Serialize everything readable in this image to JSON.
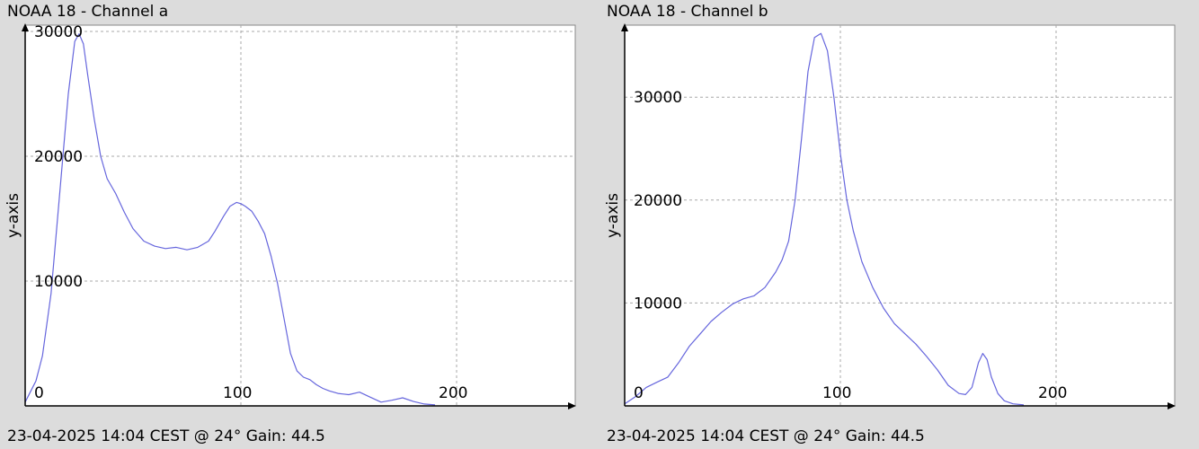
{
  "colors": {
    "background": "#dcdcdc",
    "plot_bg": "#ffffff",
    "line": "#6666dd",
    "grid": "#a8a8a8",
    "axis": "#000000"
  },
  "panels": [
    {
      "title": "NOAA 18 - Channel a",
      "footer": "23-04-2025 14:04 CEST @ 24° Gain: 44.5"
    },
    {
      "title": "NOAA 18 - Channel b",
      "footer": "23-04-2025 14:04 CEST @ 24° Gain: 44.5"
    }
  ],
  "chart_data": [
    {
      "type": "line",
      "title": "NOAA 18 - Channel a",
      "xlabel": "",
      "ylabel": "y-axis",
      "xlim": [
        0,
        255
      ],
      "ylim": [
        0,
        30500
      ],
      "xticks": [
        0,
        100,
        200
      ],
      "yticks": [
        10000,
        20000,
        30000
      ],
      "grid": true,
      "series": [
        {
          "x": [
            0,
            5,
            8,
            12,
            16,
            20,
            23,
            25,
            27,
            29,
            32,
            35,
            38,
            42,
            46,
            50,
            55,
            60,
            65,
            70,
            75,
            80,
            85,
            88,
            92,
            95,
            98,
            100,
            102,
            105,
            108,
            111,
            114,
            117,
            120,
            123,
            126,
            129,
            132,
            135,
            138,
            141,
            145,
            150,
            155,
            160,
            165,
            170,
            175,
            180,
            185,
            190
          ],
          "y": [
            300,
            2000,
            4000,
            9000,
            17000,
            25000,
            29200,
            29800,
            29000,
            26500,
            23000,
            20000,
            18200,
            17000,
            15500,
            14200,
            13200,
            12800,
            12600,
            12700,
            12500,
            12700,
            13200,
            14000,
            15200,
            16000,
            16300,
            16200,
            16000,
            15600,
            14800,
            13800,
            12000,
            9800,
            7000,
            4200,
            2800,
            2300,
            2100,
            1700,
            1400,
            1200,
            1000,
            900,
            1100,
            700,
            300,
            450,
            650,
            350,
            150,
            80
          ]
        }
      ]
    },
    {
      "type": "line",
      "title": "NOAA 18 - Channel b",
      "xlabel": "",
      "ylabel": "y-axis",
      "xlim": [
        0,
        255
      ],
      "ylim": [
        0,
        37000
      ],
      "xticks": [
        0,
        100,
        200
      ],
      "yticks": [
        10000,
        20000,
        30000
      ],
      "grid": true,
      "series": [
        {
          "x": [
            0,
            5,
            10,
            15,
            20,
            25,
            30,
            35,
            40,
            45,
            50,
            55,
            60,
            65,
            70,
            73,
            76,
            79,
            82,
            85,
            88,
            91,
            94,
            97,
            100,
            103,
            106,
            110,
            115,
            120,
            125,
            130,
            135,
            140,
            145,
            150,
            155,
            158,
            161,
            164,
            166,
            168,
            170,
            173,
            176,
            180,
            185
          ],
          "y": [
            200,
            900,
            1800,
            2300,
            2800,
            4200,
            5800,
            7000,
            8200,
            9100,
            9900,
            10400,
            10700,
            11500,
            13000,
            14200,
            16000,
            20000,
            26000,
            32500,
            35800,
            36200,
            34500,
            30000,
            24500,
            20000,
            17000,
            14000,
            11500,
            9500,
            8000,
            7000,
            6000,
            4800,
            3500,
            2000,
            1200,
            1100,
            1800,
            4200,
            5100,
            4500,
            2800,
            1200,
            500,
            200,
            100
          ]
        }
      ]
    }
  ]
}
